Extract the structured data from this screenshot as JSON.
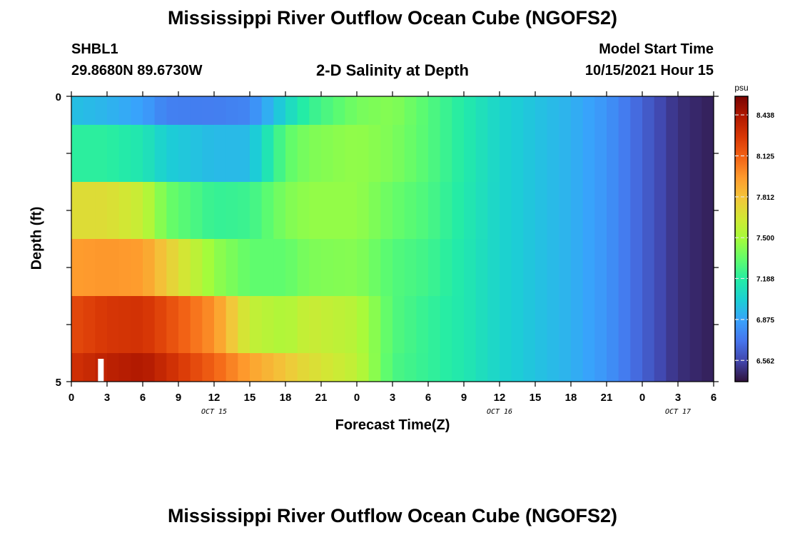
{
  "header": {
    "title": "Mississippi River Outflow Ocean Cube (NGOFS2)",
    "station_name": "SHBL1",
    "station_coords": "29.8680N  89.6730W",
    "chart_title": "2-D Salinity at Depth",
    "model_start_label": "Model Start Time",
    "model_start_value": "10/15/2021 Hour 15"
  },
  "footer": {
    "title": "Mississippi River Outflow Ocean Cube (NGOFS2)"
  },
  "chart_data": {
    "type": "heatmap",
    "title": "2-D Salinity at Depth",
    "xlabel": "Forecast Time(Z)",
    "ylabel": "Depth (ft)",
    "x_tick_labels": [
      "0",
      "3",
      "6",
      "9",
      "12",
      "15",
      "18",
      "21",
      "0",
      "3",
      "6",
      "9",
      "12",
      "15",
      "18",
      "21",
      "0",
      "3",
      "6"
    ],
    "date_labels": [
      {
        "label": "OCT 15",
        "hour_index": 12
      },
      {
        "label": "OCT 16",
        "hour_index": 36
      },
      {
        "label": "OCT 17",
        "hour_index": 51
      }
    ],
    "x_range_hours": [
      0,
      54
    ],
    "y_tick_labels": [
      {
        "label": "0",
        "depth": 0
      },
      {
        "label": "5",
        "depth": 5
      }
    ],
    "ylim": [
      0,
      5
    ],
    "layers_ft": [
      {
        "top": 0.0,
        "bottom": 0.5
      },
      {
        "top": 0.5,
        "bottom": 1.5
      },
      {
        "top": 1.5,
        "bottom": 2.5
      },
      {
        "top": 2.5,
        "bottom": 3.5
      },
      {
        "top": 3.5,
        "bottom": 4.5
      },
      {
        "top": 4.5,
        "bottom": 5.0
      }
    ],
    "salinity_keyframes": [
      {
        "hour": 0,
        "values": [
          6.97,
          7.2,
          7.7,
          7.95,
          8.2,
          8.3
        ]
      },
      {
        "hour": 3,
        "values": [
          6.93,
          7.2,
          7.7,
          7.97,
          8.28,
          8.38
        ]
      },
      {
        "hour": 6,
        "values": [
          6.86,
          7.14,
          7.6,
          7.95,
          8.3,
          8.43
        ]
      },
      {
        "hour": 8,
        "values": [
          6.75,
          7.02,
          7.36,
          7.78,
          8.2,
          8.33
        ]
      },
      {
        "hour": 12,
        "values": [
          6.74,
          6.95,
          7.22,
          7.45,
          7.98,
          8.12
        ]
      },
      {
        "hour": 15,
        "values": [
          6.77,
          6.95,
          7.24,
          7.33,
          7.6,
          7.93
        ]
      },
      {
        "hour": 18,
        "values": [
          7.05,
          7.32,
          7.4,
          7.33,
          7.52,
          7.8
        ]
      },
      {
        "hour": 20,
        "values": [
          7.22,
          7.4,
          7.45,
          7.4,
          7.62,
          7.7
        ]
      },
      {
        "hour": 24,
        "values": [
          7.38,
          7.45,
          7.45,
          7.42,
          7.55,
          7.58
        ]
      },
      {
        "hour": 27,
        "values": [
          7.42,
          7.4,
          7.35,
          7.3,
          7.3,
          7.28
        ]
      },
      {
        "hour": 30,
        "values": [
          7.3,
          7.3,
          7.28,
          7.25,
          7.22,
          7.22
        ]
      },
      {
        "hour": 33,
        "values": [
          7.17,
          7.17,
          7.16,
          7.15,
          7.15,
          7.15
        ]
      },
      {
        "hour": 36,
        "values": [
          7.05,
          7.05,
          7.05,
          7.05,
          7.05,
          7.05
        ]
      },
      {
        "hour": 39,
        "values": [
          6.98,
          6.98,
          6.98,
          6.98,
          6.98,
          6.98
        ]
      },
      {
        "hour": 42,
        "values": [
          6.92,
          6.92,
          6.92,
          6.92,
          6.92,
          6.92
        ]
      },
      {
        "hour": 45,
        "values": [
          6.82,
          6.82,
          6.82,
          6.82,
          6.82,
          6.82
        ]
      },
      {
        "hour": 48,
        "values": [
          6.65,
          6.65,
          6.65,
          6.65,
          6.65,
          6.65
        ]
      },
      {
        "hour": 51,
        "values": [
          6.49,
          6.49,
          6.49,
          6.49,
          6.49,
          6.49
        ]
      },
      {
        "hour": 54,
        "values": [
          6.44,
          6.44,
          6.44,
          6.44,
          6.44,
          6.44
        ]
      }
    ],
    "marker": {
      "hour": 2,
      "depth_range": [
        4.6,
        5.0
      ],
      "color": "#ffffff"
    },
    "colorbar": {
      "unit": "psu",
      "range": [
        6.4,
        8.58
      ],
      "ticks": [
        "8.438",
        "8.125",
        "7.812",
        "7.500",
        "7.188",
        "6.875",
        "6.562"
      ],
      "tick_values": [
        8.438,
        8.125,
        7.812,
        7.5,
        7.188,
        6.875,
        6.562
      ]
    },
    "colormap": [
      "#30123b",
      "#4145ab",
      "#4675ed",
      "#39a2fc",
      "#1bcfd4",
      "#24eca6",
      "#61fc6c",
      "#a4fc3b",
      "#d1e834",
      "#f3c63a",
      "#fe9b2d",
      "#f36315",
      "#d93806",
      "#b11901",
      "#7a0402"
    ]
  }
}
